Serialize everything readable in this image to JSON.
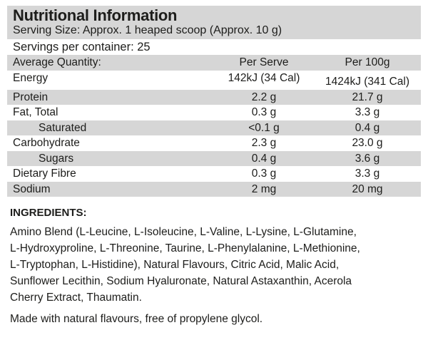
{
  "label": {
    "title": "Nutritional Information",
    "serving_size": "Serving Size: Approx. 1 heaped scoop (Approx. 10 g)",
    "servings_per_container": "Servings per container: 25"
  },
  "table": {
    "header": {
      "label": "Average Quantity:",
      "per_serve": "Per Serve",
      "per_100g": "Per 100g"
    },
    "rows": [
      {
        "label": "Energy",
        "per_serve": "142kJ (34 Cal)",
        "per_100g": "1424kJ (341 Cal)"
      },
      {
        "label": "Protein",
        "per_serve": "2.2 g",
        "per_100g": "21.7 g"
      },
      {
        "label": "Fat, Total",
        "per_serve": "0.3 g",
        "per_100g": "3.3 g"
      },
      {
        "label": "Saturated",
        "per_serve": "<0.1 g",
        "per_100g": "0.4 g"
      },
      {
        "label": "Carbohydrate",
        "per_serve": "2.3 g",
        "per_100g": "23.0 g"
      },
      {
        "label": "Sugars",
        "per_serve": "0.4 g",
        "per_100g": "3.6 g"
      },
      {
        "label": "Dietary Fibre",
        "per_serve": "0.3 g",
        "per_100g": "3.3 g"
      },
      {
        "label": "Sodium",
        "per_serve": "2 mg",
        "per_100g": "20 mg"
      }
    ]
  },
  "ingredients": {
    "heading": "INGREDIENTS:",
    "body": "Amino Blend (L-Leucine, L-Isoleucine, L-Valine, L-Lysine, L-Glutamine,\nL-Hydroxyproline, L-Threonine, Taurine, L-Phenylalanine, L-Methionine,\nL-Tryptophan, L-Histidine), Natural Flavours, Citric Acid, Malic Acid,\nSunflower Lecithin, Sodium Hyaluronate, Natural Astaxanthin, Acerola\nCherry Extract, Thaumatin.",
    "footnote": "Made with natural flavours, free of propylene glycol."
  },
  "colors": {
    "shaded_row": "#d6d6d6",
    "text": "#1d1d1b",
    "background": "#ffffff"
  }
}
